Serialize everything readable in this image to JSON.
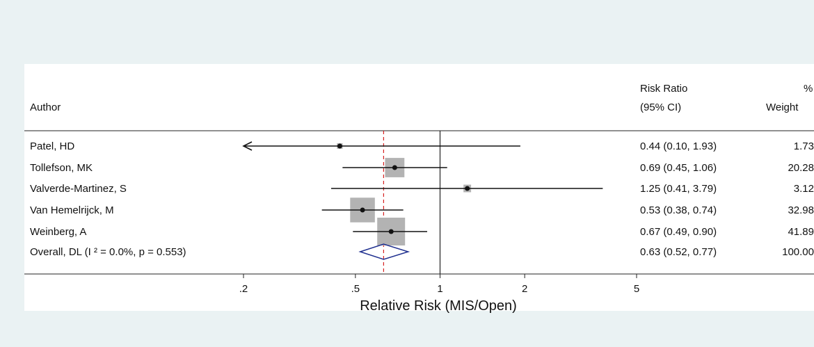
{
  "chart_data": {
    "type": "forest",
    "xlabel": "Relative Risk (MIS/Open)",
    "scale": "log",
    "x_ticks": [
      {
        "value": 0.2,
        "label": ".2"
      },
      {
        "value": 0.5,
        "label": ".5"
      },
      {
        "value": 1,
        "label": "1"
      },
      {
        "value": 2,
        "label": "2"
      },
      {
        "value": 5,
        "label": "5"
      }
    ],
    "xlim": [
      0.2,
      5
    ],
    "null_line": 1,
    "pooled_line": 0.63,
    "headers": {
      "author": "Author",
      "rr_line1": "Risk Ratio",
      "rr_line2": "(95% CI)",
      "weight_line1": "%",
      "weight_line2": "Weight"
    },
    "studies": [
      {
        "author": "Patel, HD",
        "rr": 0.44,
        "lo": 0.1,
        "hi": 1.93,
        "ci_text": "0.44 (0.10, 1.93)",
        "weight": 1.73,
        "weight_text": "1.73",
        "lo_truncated": true
      },
      {
        "author": "Tollefson, MK",
        "rr": 0.69,
        "lo": 0.45,
        "hi": 1.06,
        "ci_text": "0.69 (0.45, 1.06)",
        "weight": 20.28,
        "weight_text": "20.28"
      },
      {
        "author": "Valverde-Martinez, S",
        "rr": 1.25,
        "lo": 0.41,
        "hi": 3.79,
        "ci_text": "1.25 (0.41, 3.79)",
        "weight": 3.12,
        "weight_text": "3.12"
      },
      {
        "author": "Van Hemelrijck, M",
        "rr": 0.53,
        "lo": 0.38,
        "hi": 0.74,
        "ci_text": "0.53 (0.38, 0.74)",
        "weight": 32.98,
        "weight_text": "32.98"
      },
      {
        "author": "Weinberg, A",
        "rr": 0.67,
        "lo": 0.49,
        "hi": 0.9,
        "ci_text": "0.67 (0.49, 0.90)",
        "weight": 41.89,
        "weight_text": "41.89"
      }
    ],
    "overall": {
      "label": "Overall, DL (I ² = 0.0%, p = 0.553)",
      "rr": 0.63,
      "lo": 0.52,
      "hi": 0.77,
      "ci_text": "0.63 (0.52, 0.77)",
      "weight_text": "100.00"
    },
    "colors": {
      "background": "#eaf2f3",
      "panel": "#ffffff",
      "weight_box": "#b3b3b3",
      "diamond": "#1f2f8f",
      "pooled_line": "#d62020"
    }
  }
}
